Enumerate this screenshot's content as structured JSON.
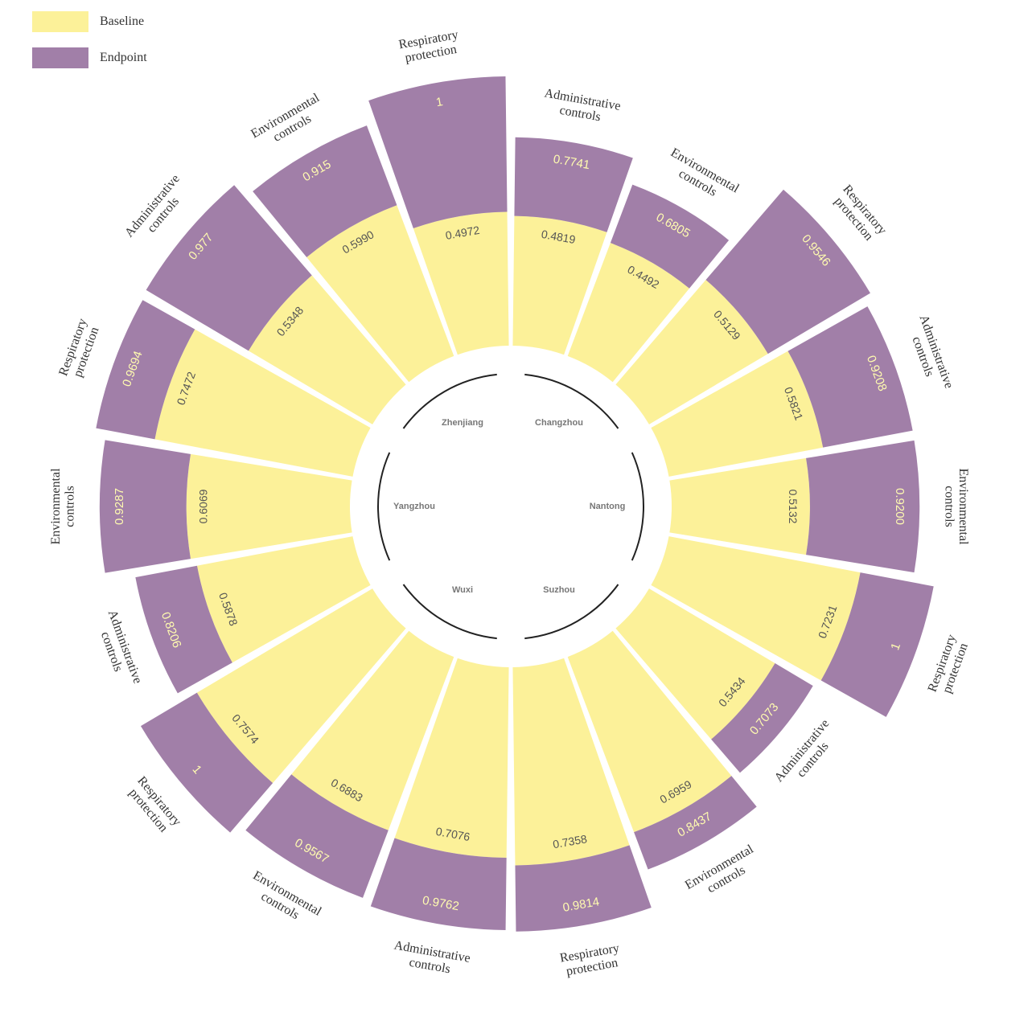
{
  "legend": {
    "baseline_label": "Baseline",
    "endpoint_label": "Endpoint"
  },
  "colors": {
    "baseline": "#fcf199",
    "endpoint": "#a17fa8",
    "endpoint_text": "#fffbb0",
    "region_arc": "#222222"
  },
  "chart_data": {
    "type": "radial-stacked-bar",
    "series": [
      {
        "name": "Baseline"
      },
      {
        "name": "Endpoint"
      }
    ],
    "regions": [
      "Changzhou",
      "Nantong",
      "Suzhou",
      "Wuxi",
      "Yangzhou",
      "Zhenjiang"
    ],
    "bars": [
      {
        "region": "Changzhou",
        "category": [
          "Administrative",
          "controls"
        ],
        "baseline_label": "0.4819",
        "endpoint_label": "0.7741",
        "baseline": 0.4819,
        "endpoint": 0.7741
      },
      {
        "region": "Changzhou",
        "category": [
          "Environmental",
          "controls"
        ],
        "baseline_label": "0.4492",
        "endpoint_label": "0.6805",
        "baseline": 0.4492,
        "endpoint": 0.6805
      },
      {
        "region": "Changzhou",
        "category": [
          "Respiratory",
          "protection"
        ],
        "baseline_label": "0.5129",
        "endpoint_label": "0.9546",
        "baseline": 0.5129,
        "endpoint": 0.9546
      },
      {
        "region": "Nantong",
        "category": [
          "Administrative",
          "controls"
        ],
        "baseline_label": "0.5821",
        "endpoint_label": "0.9208",
        "baseline": 0.5821,
        "endpoint": 0.9208
      },
      {
        "region": "Nantong",
        "category": [
          "Environmental",
          "controls"
        ],
        "baseline_label": "0.5132",
        "endpoint_label": "0.9200",
        "baseline": 0.5132,
        "endpoint": 0.92
      },
      {
        "region": "Nantong",
        "category": [
          "Respiratory",
          "protection"
        ],
        "baseline_label": "0.7231",
        "endpoint_label": "1",
        "baseline": 0.7231,
        "endpoint": 1
      },
      {
        "region": "Suzhou",
        "category": [
          "Administrative",
          "controls"
        ],
        "baseline_label": "0.5434",
        "endpoint_label": "0.7073",
        "baseline": 0.5434,
        "endpoint": 0.7073
      },
      {
        "region": "Suzhou",
        "category": [
          "Environmental",
          "controls"
        ],
        "baseline_label": "0.6959",
        "endpoint_label": "0.8437",
        "baseline": 0.6959,
        "endpoint": 0.8437
      },
      {
        "region": "Suzhou",
        "category": [
          "Respiratory",
          "protection"
        ],
        "baseline_label": "0.7358",
        "endpoint_label": "0.9814",
        "baseline": 0.7358,
        "endpoint": 0.9814
      },
      {
        "region": "Wuxi",
        "category": [
          "Administrative",
          "controls"
        ],
        "baseline_label": "0.7076",
        "endpoint_label": "0.9762",
        "baseline": 0.7076,
        "endpoint": 0.9762
      },
      {
        "region": "Wuxi",
        "category": [
          "Environmental",
          "controls"
        ],
        "baseline_label": "0.6883",
        "endpoint_label": "0.9567",
        "baseline": 0.6883,
        "endpoint": 0.9567
      },
      {
        "region": "Wuxi",
        "category": [
          "Respiratory",
          "protection"
        ],
        "baseline_label": "0.7574",
        "endpoint_label": "1",
        "baseline": 0.7574,
        "endpoint": 1
      },
      {
        "region": "Yangzhou",
        "category": [
          "Administrative",
          "controls"
        ],
        "baseline_label": "0.5878",
        "endpoint_label": "0.8206",
        "baseline": 0.5878,
        "endpoint": 0.8206
      },
      {
        "region": "Yangzhou",
        "category": [
          "Environmental",
          "controls"
        ],
        "baseline_label": "0.6069",
        "endpoint_label": "0.9287",
        "baseline": 0.6069,
        "endpoint": 0.9287
      },
      {
        "region": "Yangzhou",
        "category": [
          "Respiratory",
          "protection"
        ],
        "baseline_label": "0.7472",
        "endpoint_label": "0.9694",
        "baseline": 0.7472,
        "endpoint": 0.9694
      },
      {
        "region": "Zhenjiang",
        "category": [
          "Administrative",
          "controls"
        ],
        "baseline_label": "0.5348",
        "endpoint_label": "0.977",
        "baseline": 0.5348,
        "endpoint": 0.977
      },
      {
        "region": "Zhenjiang",
        "category": [
          "Environmental",
          "controls"
        ],
        "baseline_label": "0.5990",
        "endpoint_label": "0.915",
        "baseline": 0.599,
        "endpoint": 0.915
      },
      {
        "region": "Zhenjiang",
        "category": [
          "Respiratory",
          "protection"
        ],
        "baseline_label": "0.4972",
        "endpoint_label": "1",
        "baseline": 0.4972,
        "endpoint": 1
      }
    ]
  }
}
